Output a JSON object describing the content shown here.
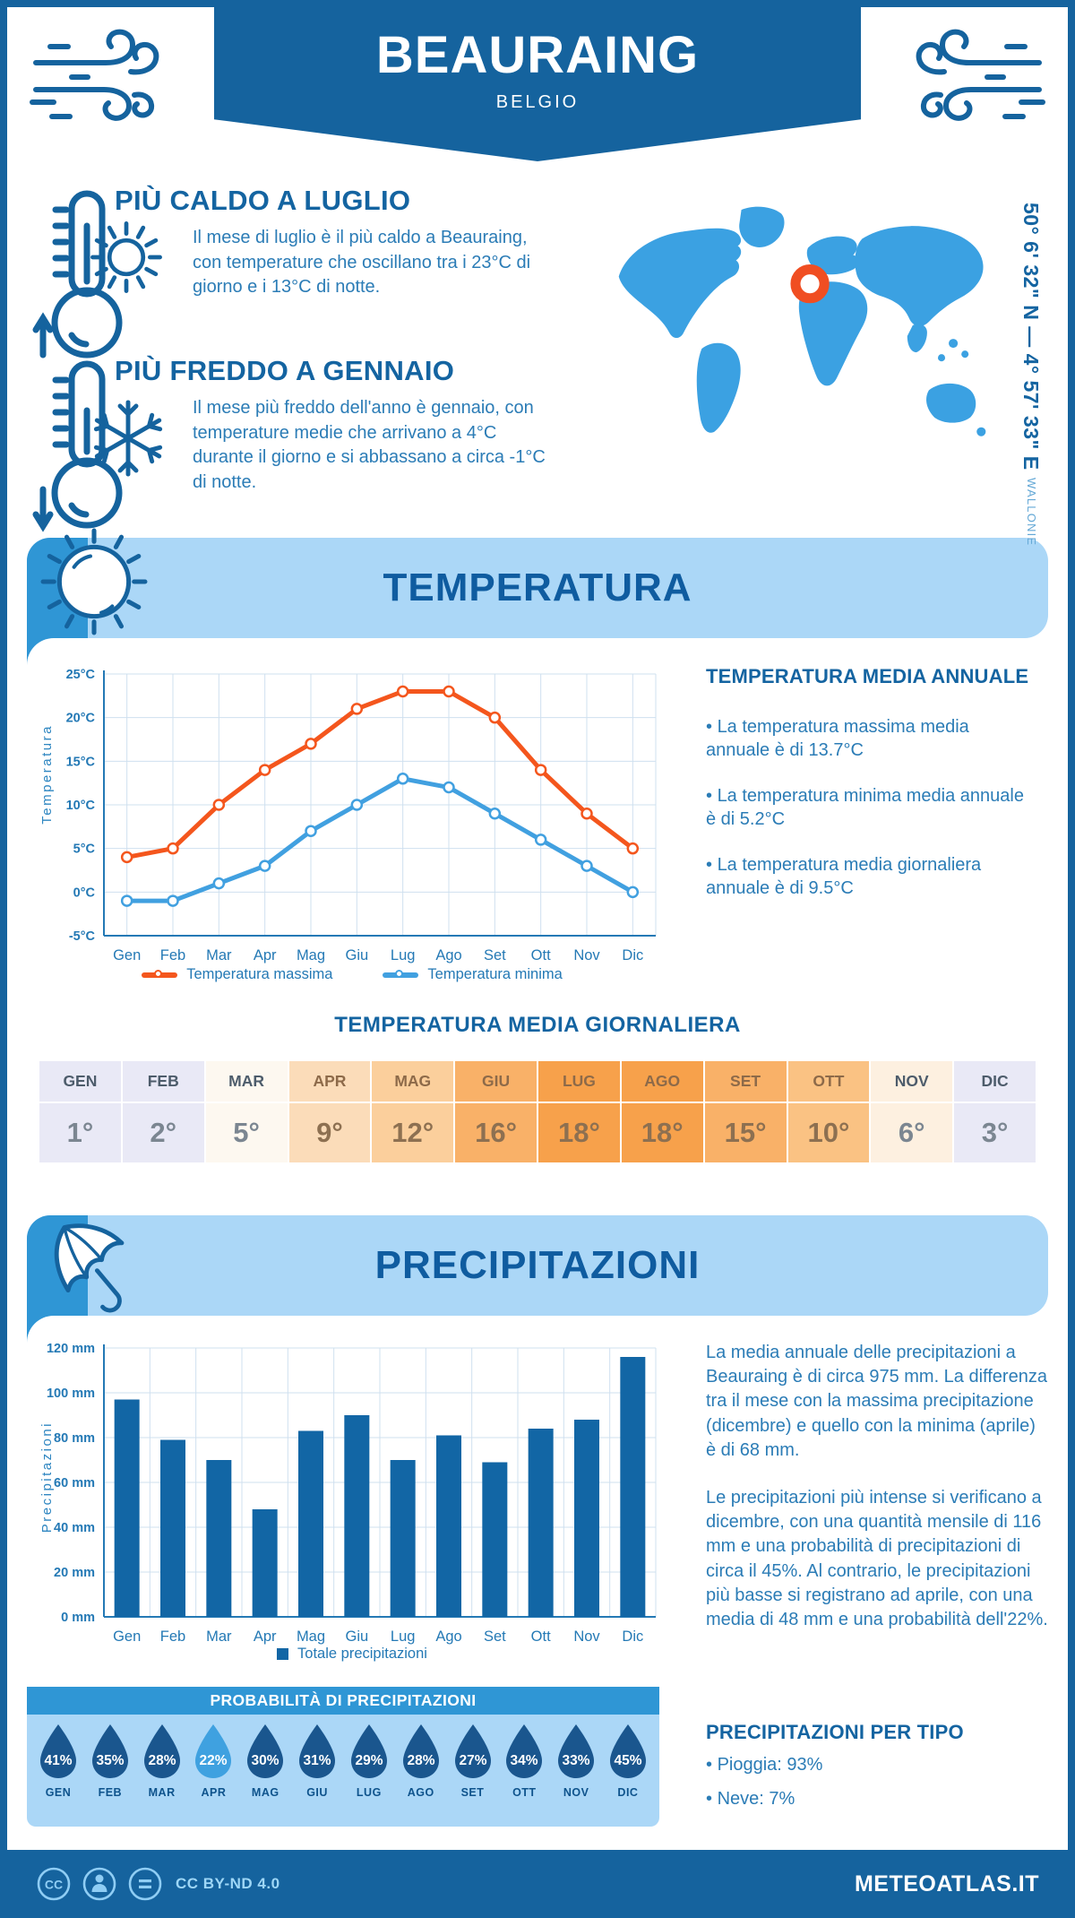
{
  "colors": {
    "primary": "#15639e",
    "band_bg": "#abd7f7",
    "accent_blue": "#2f96d5",
    "heading": "#1464a1",
    "body_text": "#2b7cb6",
    "axis_text": "#2479b5",
    "grid": "#cfe0ef",
    "max_line": "#f4561d",
    "min_line": "#41a0e0",
    "bar": "#1266a5",
    "map_fill": "#3ba1e2",
    "marker": "#f04e22",
    "drop": "#1a568e",
    "drop_highlight": "#3fa1e0"
  },
  "header": {
    "title": "BEAURAING",
    "subtitle": "BELGIO"
  },
  "highlights": [
    {
      "title": "PIÙ CALDO A LUGLIO",
      "text": "Il mese di luglio è il più caldo a Beauraing, con temperature che oscillano tra i 23°C di giorno e i 13°C di notte."
    },
    {
      "title": "PIÙ FREDDO A GENNAIO",
      "text": "Il mese più freddo dell'anno è gennaio, con temperature medie che arrivano a 4°C durante il giorno e si abbassano a circa -1°C di notte."
    }
  ],
  "map": {
    "coordinates": "50° 6' 32\" N — 4° 57' 33\" E",
    "region": "WALLONIE"
  },
  "temperature_section": {
    "band_title": "TEMPERATURA",
    "annual_title": "TEMPERATURA MEDIA ANNUALE",
    "annual_bullets": [
      "La temperatura massima media annuale è di 13.7°C",
      "La temperatura minima media annuale è di 5.2°C",
      "La temperatura media giornaliera annuale è di 9.5°C"
    ],
    "daily_title": "TEMPERATURA MEDIA GIORNALIERA"
  },
  "chart_data": [
    {
      "id": "temperature",
      "type": "line",
      "title": "Temperatura massima e minima mensile",
      "categories": [
        "Gen",
        "Feb",
        "Mar",
        "Apr",
        "Mag",
        "Giu",
        "Lug",
        "Ago",
        "Set",
        "Ott",
        "Nov",
        "Dic"
      ],
      "series": [
        {
          "name": "Temperatura massima",
          "color": "#f4561d",
          "values": [
            4,
            5,
            10,
            14,
            17,
            21,
            23,
            23,
            20,
            14,
            9,
            5
          ]
        },
        {
          "name": "Temperatura minima",
          "color": "#41a0e0",
          "values": [
            -1,
            -1,
            1,
            3,
            7,
            10,
            13,
            12,
            9,
            6,
            3,
            0
          ]
        }
      ],
      "xlabel": "",
      "ylabel": "Temperatura",
      "ylim": [
        -5,
        25
      ],
      "ytick_step": 5,
      "unit": "°C",
      "grid": true,
      "legend_position": "bottom"
    },
    {
      "id": "precipitation",
      "type": "bar",
      "title": "Totale precipitazioni mensili",
      "categories": [
        "Gen",
        "Feb",
        "Mar",
        "Apr",
        "Mag",
        "Giu",
        "Lug",
        "Ago",
        "Set",
        "Ott",
        "Nov",
        "Dic"
      ],
      "series": [
        {
          "name": "Totale precipitazioni",
          "color": "#1266a5",
          "values": [
            97,
            79,
            70,
            48,
            83,
            90,
            70,
            81,
            69,
            84,
            88,
            116
          ]
        }
      ],
      "xlabel": "",
      "ylabel": "Precipitazioni",
      "ylim": [
        0,
        120
      ],
      "ytick_step": 20,
      "unit": " mm",
      "grid": true,
      "legend_position": "bottom"
    }
  ],
  "daily_table": {
    "months": [
      {
        "label": "GEN",
        "value": "1°",
        "bg": "#e9e9f6",
        "tone": "cool"
      },
      {
        "label": "FEB",
        "value": "2°",
        "bg": "#e9e9f6",
        "tone": "cool"
      },
      {
        "label": "MAR",
        "value": "5°",
        "bg": "#fdf8f0",
        "tone": "cool"
      },
      {
        "label": "APR",
        "value": "9°",
        "bg": "#fbdcb9",
        "tone": "warm"
      },
      {
        "label": "MAG",
        "value": "12°",
        "bg": "#fbcf9c",
        "tone": "warm"
      },
      {
        "label": "GIU",
        "value": "16°",
        "bg": "#f9b168",
        "tone": "warm"
      },
      {
        "label": "LUG",
        "value": "18°",
        "bg": "#f7a14b",
        "tone": "warm"
      },
      {
        "label": "AGO",
        "value": "18°",
        "bg": "#f7a14b",
        "tone": "warm"
      },
      {
        "label": "SET",
        "value": "15°",
        "bg": "#f9b168",
        "tone": "warm"
      },
      {
        "label": "OTT",
        "value": "10°",
        "bg": "#fac283",
        "tone": "warm"
      },
      {
        "label": "NOV",
        "value": "6°",
        "bg": "#fdf0e0",
        "tone": "cool"
      },
      {
        "label": "DIC",
        "value": "3°",
        "bg": "#e9e9f6",
        "tone": "cool"
      }
    ],
    "text_colors": {
      "cool_month": "#4d5c6b",
      "warm_month": "#8d6a49",
      "cool_value": "#7b8691",
      "warm_value": "#8d7051"
    }
  },
  "precipitation_section": {
    "band_title": "PRECIPITAZIONI",
    "paragraph1": "La media annuale delle precipitazioni a Beauraing è di circa 975 mm. La differenza tra il mese con la massima precipitazione (dicembre) e quello con la minima (aprile) è di 68 mm.",
    "paragraph2": "Le precipitazioni più intense si verificano a dicembre, con una quantità mensile di 116 mm e una probabilità di precipitazioni di circa il 45%. Al contrario, le precipitazioni più basse si registrano ad aprile, con una media di 48 mm e una probabilità dell'22%.",
    "probability_title": "PROBABILITÀ DI PRECIPITAZIONI",
    "probability": [
      {
        "month": "GEN",
        "value": "41%"
      },
      {
        "month": "FEB",
        "value": "35%"
      },
      {
        "month": "MAR",
        "value": "28%"
      },
      {
        "month": "APR",
        "value": "22%",
        "highlight": true
      },
      {
        "month": "MAG",
        "value": "30%"
      },
      {
        "month": "GIU",
        "value": "31%"
      },
      {
        "month": "LUG",
        "value": "29%"
      },
      {
        "month": "AGO",
        "value": "28%"
      },
      {
        "month": "SET",
        "value": "27%"
      },
      {
        "month": "OTT",
        "value": "34%"
      },
      {
        "month": "NOV",
        "value": "33%"
      },
      {
        "month": "DIC",
        "value": "45%"
      }
    ],
    "type_title": "PRECIPITAZIONI PER TIPO",
    "type_bullets": [
      "Pioggia: 93%",
      "Neve: 7%"
    ]
  },
  "footer": {
    "license": "CC BY-ND 4.0",
    "brand": "METEOATLAS.IT"
  }
}
